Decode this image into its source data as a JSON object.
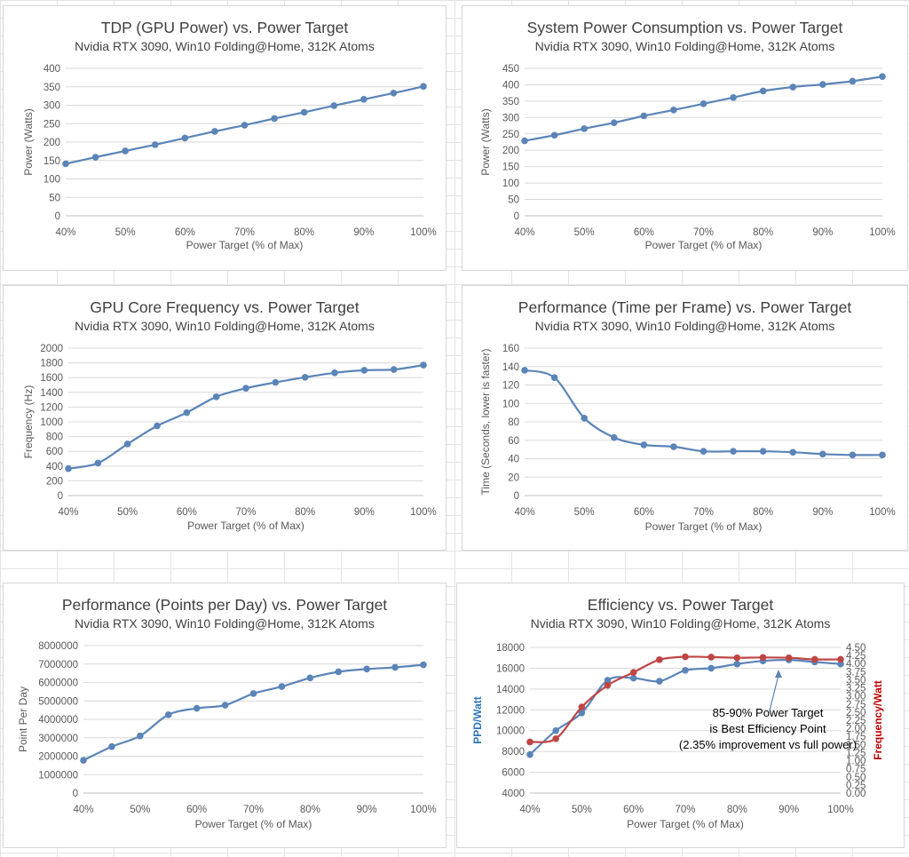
{
  "colors": {
    "blue": "#5b84b8",
    "red": "#bf4545",
    "axis_text": "#595959",
    "grid": "#d9d9d9"
  },
  "charts": {
    "c1": {
      "title": "TDP (GPU Power) vs. Power Target",
      "subtitle": "Nvidia RTX 3090, Win10 Folding@Home, 312K Atoms",
      "xlabel": "Power Target (% of Max)",
      "ylabel": "Power (Watts)"
    },
    "c2": {
      "title": "System Power Consumption vs. Power Target",
      "subtitle": "Nvidia RTX 3090, Win10 Folding@Home, 312K Atoms",
      "xlabel": "Power Target (% of Max)",
      "ylabel": "Power (Watts)"
    },
    "c3": {
      "title": "GPU Core Frequency vs. Power Target",
      "subtitle": "Nvidia RTX 3090, Win10 Folding@Home, 312K Atoms",
      "xlabel": "Power Target (% of Max)",
      "ylabel": "Frequency (Hz)"
    },
    "c4": {
      "title": "Performance (Time per Frame) vs. Power Target",
      "subtitle": "Nvidia RTX 3090, Win10 Folding@Home, 312K Atoms",
      "xlabel": "Power Target (% of Max)",
      "ylabel": "Time (Seconds, lower is faster)"
    },
    "c5": {
      "title": "Performance (Points per Day) vs. Power Target",
      "subtitle": "Nvidia RTX 3090, Win10 Folding@Home, 312K Atoms",
      "xlabel": "Power Target (% of Max)",
      "ylabel": "Point Per Day"
    },
    "c6": {
      "title": "Efficiency vs. Power Target",
      "subtitle": "Nvidia RTX 3090, Win10 Folding@Home, 312K Atoms",
      "xlabel": "Power Target (% of Max)",
      "ylabel": "PPD/Watt",
      "y2label": "Frequency/Watt",
      "annotation": [
        "85-90% Power Target",
        "is Best Efficiency Point",
        "(2.35% improvement vs full power)"
      ]
    }
  },
  "chart_data": [
    {
      "type": "line",
      "title": "TDP (GPU Power) vs. Power Target",
      "subtitle": "Nvidia RTX 3090, Win10 Folding@Home, 312K Atoms",
      "xlabel": "Power Target (% of Max)",
      "ylabel": "Power (Watts)",
      "categories": [
        "40%",
        "45%",
        "50%",
        "55%",
        "60%",
        "65%",
        "70%",
        "75%",
        "80%",
        "85%",
        "90%",
        "95%",
        "100%"
      ],
      "series": [
        {
          "values": [
            141,
            159,
            176,
            193,
            211,
            229,
            246,
            264,
            281,
            299,
            316,
            333,
            351
          ]
        }
      ],
      "ylim": [
        0,
        400
      ],
      "ytick_step": 50,
      "ytick_labels": [
        "0",
        "50",
        "100",
        "150",
        "200",
        "250",
        "300",
        "350",
        "400"
      ],
      "x_ticks": [
        "40%",
        "50%",
        "60%",
        "70%",
        "80%",
        "90%",
        "100%"
      ],
      "grid": true,
      "legend": "none"
    },
    {
      "type": "line",
      "title": "System Power Consumption vs. Power Target",
      "subtitle": "Nvidia RTX 3090, Win10 Folding@Home, 312K Atoms",
      "xlabel": "Power Target (% of Max)",
      "ylabel": "Power (Watts)",
      "categories": [
        "40%",
        "45%",
        "50%",
        "55%",
        "60%",
        "65%",
        "70%",
        "75%",
        "80%",
        "85%",
        "90%",
        "95%",
        "100%"
      ],
      "series": [
        {
          "values": [
            229,
            246,
            266,
            284,
            305,
            323,
            342,
            361,
            381,
            393,
            401,
            411,
            425
          ]
        }
      ],
      "ylim": [
        0,
        450
      ],
      "ytick_step": 50,
      "ytick_labels": [
        "0",
        "50",
        "100",
        "150",
        "200",
        "250",
        "300",
        "350",
        "400",
        "450"
      ],
      "x_ticks": [
        "40%",
        "50%",
        "60%",
        "70%",
        "80%",
        "90%",
        "100%"
      ],
      "grid": true,
      "legend": "none"
    },
    {
      "type": "line",
      "title": "GPU Core Frequency vs. Power Target",
      "subtitle": "Nvidia RTX 3090, Win10 Folding@Home, 312K Atoms",
      "xlabel": "Power Target (% of Max)",
      "ylabel": "Frequency (Hz)",
      "categories": [
        "40%",
        "45%",
        "50%",
        "55%",
        "60%",
        "65%",
        "70%",
        "75%",
        "80%",
        "85%",
        "90%",
        "95%",
        "100%"
      ],
      "series": [
        {
          "values": [
            365,
            440,
            700,
            945,
            1125,
            1340,
            1455,
            1535,
            1605,
            1665,
            1700,
            1710,
            1770
          ]
        }
      ],
      "ylim": [
        0,
        2000
      ],
      "ytick_step": 200,
      "ytick_labels": [
        "0",
        "200",
        "400",
        "600",
        "800",
        "1000",
        "1200",
        "1400",
        "1600",
        "1800",
        "2000"
      ],
      "x_ticks": [
        "40%",
        "50%",
        "60%",
        "70%",
        "80%",
        "90%",
        "100%"
      ],
      "grid": true,
      "legend": "none"
    },
    {
      "type": "line",
      "title": "Performance (Time per Frame) vs. Power Target",
      "subtitle": "Nvidia RTX 3090, Win10 Folding@Home, 312K Atoms",
      "xlabel": "Power Target (% of Max)",
      "ylabel": "Time (Seconds, lower is faster)",
      "categories": [
        "40%",
        "45%",
        "50%",
        "55%",
        "60%",
        "65%",
        "70%",
        "75%",
        "80%",
        "85%",
        "90%",
        "95%",
        "100%"
      ],
      "series": [
        {
          "values": [
            136,
            128,
            84,
            63,
            55,
            53,
            48,
            48,
            48,
            47,
            45,
            44,
            44
          ]
        }
      ],
      "ylim": [
        0,
        160
      ],
      "ytick_step": 20,
      "ytick_labels": [
        "0",
        "20",
        "40",
        "60",
        "80",
        "100",
        "120",
        "140",
        "160"
      ],
      "x_ticks": [
        "40%",
        "50%",
        "60%",
        "70%",
        "80%",
        "90%",
        "100%"
      ],
      "grid": true,
      "legend": "none"
    },
    {
      "type": "line",
      "title": "Performance (Points per Day) vs. Power Target",
      "subtitle": "Nvidia RTX 3090, Win10 Folding@Home, 312K Atoms",
      "xlabel": "Power Target (% of Max)",
      "ylabel": "Point Per Day",
      "categories": [
        "40%",
        "45%",
        "50%",
        "55%",
        "60%",
        "65%",
        "70%",
        "75%",
        "80%",
        "85%",
        "90%",
        "95%",
        "100%"
      ],
      "series": [
        {
          "values": [
            1780000,
            2520000,
            3100000,
            4250000,
            4600000,
            4770000,
            5400000,
            5780000,
            6250000,
            6580000,
            6730000,
            6820000,
            6960000
          ]
        }
      ],
      "ylim": [
        0,
        8000000
      ],
      "ytick_step": 1000000,
      "ytick_labels": [
        "0",
        "1000000",
        "2000000",
        "3000000",
        "4000000",
        "5000000",
        "6000000",
        "7000000",
        "8000000"
      ],
      "x_ticks": [
        "40%",
        "50%",
        "60%",
        "70%",
        "80%",
        "90%",
        "100%"
      ],
      "grid": true,
      "legend": "none"
    },
    {
      "type": "line",
      "title": "Efficiency vs. Power Target",
      "subtitle": "Nvidia RTX 3090, Win10 Folding@Home, 312K Atoms",
      "xlabel": "Power Target (% of Max)",
      "ylabel": "PPD/Watt",
      "y2label": "Frequency/Watt",
      "categories": [
        "40%",
        "45%",
        "50%",
        "55%",
        "60%",
        "65%",
        "70%",
        "75%",
        "80%",
        "85%",
        "90%",
        "95%",
        "100%"
      ],
      "series": [
        {
          "axis": "left",
          "color": "#5b84b8",
          "values": [
            7700,
            10000,
            11700,
            14850,
            15050,
            14750,
            15800,
            16000,
            16400,
            16700,
            16800,
            16600,
            16400
          ]
        },
        {
          "axis": "right",
          "color": "#bf4545",
          "values": [
            1.58,
            1.68,
            2.66,
            3.33,
            3.73,
            4.12,
            4.21,
            4.2,
            4.18,
            4.19,
            4.18,
            4.13,
            4.13
          ]
        }
      ],
      "ylim": [
        4000,
        18000
      ],
      "ytick_step": 2000,
      "ytick_labels": [
        "4000",
        "6000",
        "8000",
        "10000",
        "12000",
        "14000",
        "16000",
        "18000"
      ],
      "y2lim": [
        0,
        4.5
      ],
      "y2tick_step": 0.25,
      "y2tick_labels": [
        "0.00",
        "0.25",
        "0.50",
        "0.75",
        "1.00",
        "1.25",
        "1.50",
        "1.75",
        "2.00",
        "2.25",
        "2.50",
        "2.75",
        "3.00",
        "3.25",
        "3.50",
        "3.75",
        "4.00",
        "4.25",
        "4.50"
      ],
      "x_ticks": [
        "40%",
        "50%",
        "60%",
        "70%",
        "80%",
        "90%",
        "100%"
      ],
      "grid": true,
      "legend": "none",
      "annotations": [
        "85-90% Power Target",
        "is Best Efficiency Point",
        "(2.35% improvement vs full power)"
      ]
    }
  ]
}
